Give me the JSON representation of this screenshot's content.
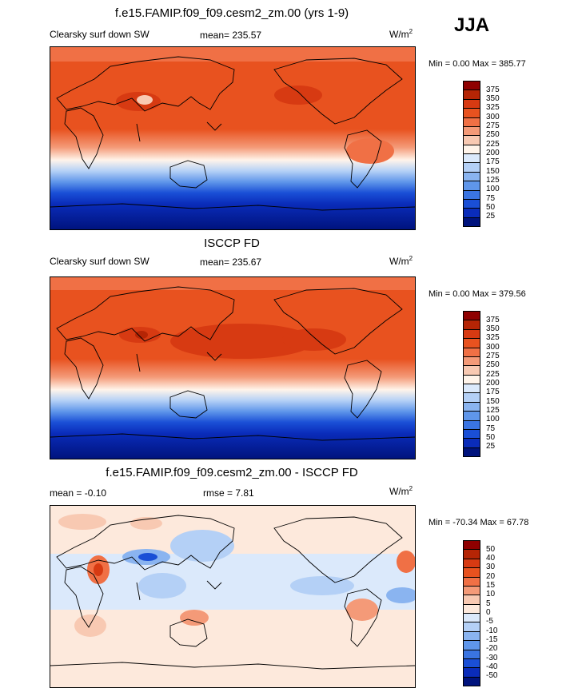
{
  "season": "JJA",
  "unit_base": "W/m",
  "unit_exp": "2",
  "panels": [
    {
      "title": "f.e15.FAMIP.f09_f09.cesm2_zm.00 (yrs 1-9)",
      "left_label": "Clearsky surf down SW",
      "center_label": "mean= 235.57",
      "minmax": "Min =   0.00 Max = 385.77",
      "levels": [
        "375",
        "350",
        "325",
        "300",
        "275",
        "250",
        "225",
        "200",
        "175",
        "150",
        "125",
        "100",
        "75",
        "50",
        "25"
      ]
    },
    {
      "title": "ISCCP FD",
      "left_label": "Clearsky surf down SW",
      "center_label": "mean= 235.67",
      "minmax": "Min =   0.00 Max = 379.56",
      "levels": [
        "375",
        "350",
        "325",
        "300",
        "275",
        "250",
        "225",
        "200",
        "175",
        "150",
        "125",
        "100",
        "75",
        "50",
        "25"
      ]
    },
    {
      "title": "f.e15.FAMIP.f09_f09.cesm2_zm.00 - ISCCP FD",
      "left_label": "mean =  -0.10",
      "center_label": "rmse =   7.81",
      "minmax": "Min = -70.34 Max =  67.78",
      "levels": [
        "50",
        "40",
        "30",
        "20",
        "15",
        "10",
        "5",
        "0",
        "-5",
        "-10",
        "-15",
        "-20",
        "-30",
        "-40",
        "-50"
      ]
    }
  ],
  "colors": {
    "abs_scale": [
      "#8f0000",
      "#b52505",
      "#d73a12",
      "#e8521f",
      "#f07045",
      "#f49a78",
      "#f8c9b2",
      "#fff4ea",
      "#dbe9fb",
      "#b4d0f6",
      "#8ab4f0",
      "#5f96ea",
      "#3a74e2",
      "#1a4fd6",
      "#0a2cba",
      "#00137d"
    ],
    "diff_scale": [
      "#8f0000",
      "#b52505",
      "#d73a12",
      "#e8521f",
      "#f07045",
      "#f49a78",
      "#f8c9b2",
      "#fde9dc",
      "#dbe9fb",
      "#b4d0f6",
      "#8ab4f0",
      "#5f96ea",
      "#3a74e2",
      "#1a4fd6",
      "#0a2cba",
      "#00137d"
    ]
  }
}
